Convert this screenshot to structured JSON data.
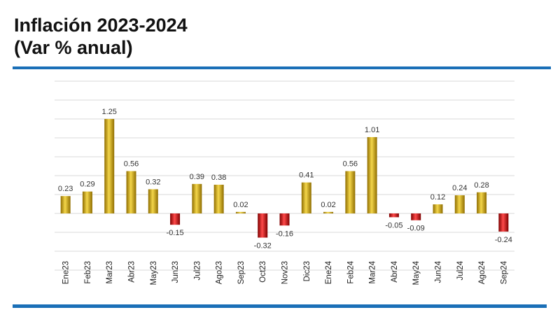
{
  "header": {
    "title_line1": "Inflación 2023-2024",
    "title_line2": "(Var % anual)"
  },
  "colors": {
    "rule": "#1a6fb7",
    "positive_light": "#f4d64a",
    "positive_dark": "#8f6d00",
    "negative_light": "#ff4a4a",
    "negative_dark": "#7e0000",
    "grid": "#d9d9d9"
  },
  "chart_data": {
    "type": "bar",
    "title": "Inflación 2023-2024 (Var % anual)",
    "xlabel": "",
    "ylabel": "",
    "grid": true,
    "legend": "none",
    "ylim": [
      -0.75,
      1.75
    ],
    "categories": [
      "Ene23",
      "Feb23",
      "Mar23",
      "Abr23",
      "May23",
      "Jun23",
      "Jul23",
      "Ago23",
      "Sep23",
      "Oct23",
      "Nov23",
      "Dic23",
      "Ene24",
      "Feb24",
      "Mar24",
      "Abr24",
      "May24",
      "Jun24",
      "Jul24",
      "Ago24",
      "Sep24"
    ],
    "values": [
      0.23,
      0.29,
      1.25,
      0.56,
      0.32,
      -0.15,
      0.39,
      0.38,
      0.02,
      -0.32,
      -0.16,
      0.41,
      0.02,
      0.56,
      1.01,
      -0.05,
      -0.09,
      0.12,
      0.24,
      0.28,
      -0.24
    ],
    "labels": [
      "0.23",
      "0.29",
      "1.25",
      "0.56",
      "0.32",
      "-0.15",
      "0.39",
      "0.38",
      "0.02",
      "-0.32",
      "-0.16",
      "0.41",
      "0.02",
      "0.56",
      "1.01",
      "-0.05",
      "-0.09",
      "0.12",
      "0.24",
      "0.28",
      "-0.24"
    ]
  }
}
